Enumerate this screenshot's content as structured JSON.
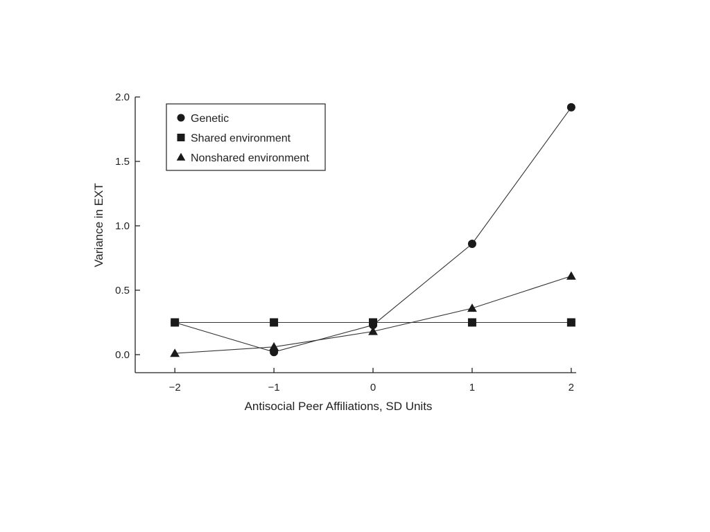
{
  "chart_data": {
    "type": "line",
    "title": "",
    "xlabel": "Antisocial Peer Affiliations, SD Units",
    "ylabel": "Variance in EXT",
    "x": [
      -2,
      -1,
      0,
      1,
      2
    ],
    "x_tick_labels": [
      "−2",
      "−1",
      "0",
      "1",
      "2"
    ],
    "y_ticks": [
      0.0,
      0.5,
      1.0,
      1.5,
      2.0
    ],
    "y_tick_labels": [
      "0.0",
      "0.5",
      "1.0",
      "1.5",
      "2.0"
    ],
    "xlim": [
      -2.4,
      2.05
    ],
    "ylim": [
      -0.14,
      2.0
    ],
    "grid": false,
    "legend_position": "top-left",
    "series": [
      {
        "name": "Genetic",
        "marker": "circle",
        "values": [
          0.25,
          0.02,
          0.23,
          0.86,
          1.92
        ]
      },
      {
        "name": "Shared environment",
        "marker": "square",
        "values": [
          0.25,
          0.25,
          0.25,
          0.25,
          0.25
        ]
      },
      {
        "name": "Nonshared environment",
        "marker": "triangle",
        "values": [
          0.01,
          0.06,
          0.18,
          0.36,
          0.61
        ]
      }
    ]
  }
}
